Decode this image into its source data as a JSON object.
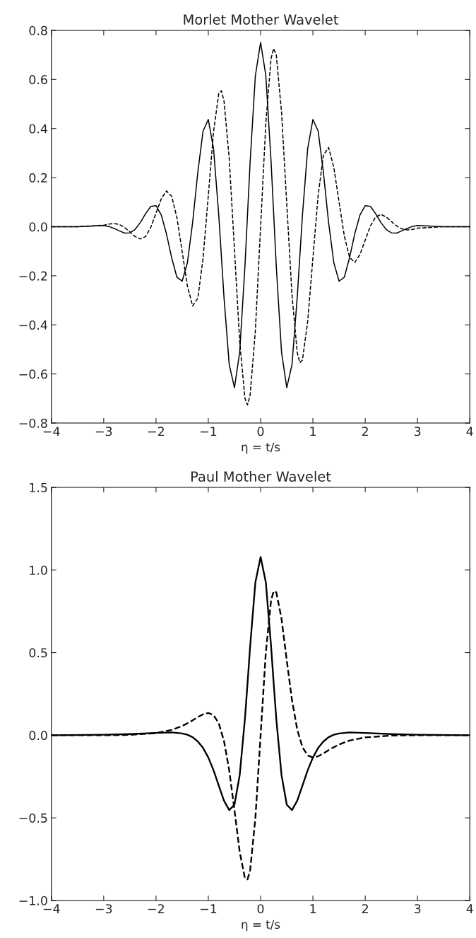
{
  "chart_data": [
    {
      "type": "line",
      "title": "Morlet Mother Wavelet",
      "xlabel": "η = t/s",
      "xlim": [
        -4,
        4
      ],
      "xticks": [
        -4,
        -3,
        -2,
        -1,
        0,
        1,
        2,
        3,
        4
      ],
      "ylim": [
        -0.8,
        0.8
      ],
      "yticks": [
        -0.8,
        -0.6,
        -0.4,
        -0.2,
        {
          "value": 0,
          "label": "0.0"
        },
        0.2,
        0.4,
        0.6,
        0.8
      ],
      "marker": "none",
      "x": [
        -4,
        -3.5,
        -3.0,
        -2.9,
        -2.8,
        -2.7,
        -2.6,
        -2.5,
        -2.4,
        -2.3,
        -2.2,
        -2.1,
        -2.0,
        -1.9,
        -1.8,
        -1.7,
        -1.6,
        -1.5,
        -1.4,
        -1.3,
        -1.2,
        -1.1,
        -1.0,
        -0.9,
        -0.8,
        -0.75,
        -0.7,
        -0.6,
        -0.5,
        -0.4,
        -0.3,
        -0.25,
        -0.2,
        -0.1,
        0,
        0.1,
        0.2,
        0.25,
        0.3,
        0.4,
        0.5,
        0.6,
        0.7,
        0.75,
        0.8,
        0.9,
        1.0,
        1.1,
        1.2,
        1.3,
        1.4,
        1.5,
        1.6,
        1.7,
        1.8,
        1.9,
        2.0,
        2.1,
        2.2,
        2.3,
        2.4,
        2.5,
        2.6,
        2.7,
        2.8,
        2.9,
        3.0,
        3.5,
        4
      ],
      "series": [
        {
          "color": "#000000",
          "line_style": "solid",
          "values": [
            0,
            0,
            0.005,
            0.001,
            -0.007,
            -0.017,
            -0.026,
            -0.025,
            -0.011,
            0.017,
            0.053,
            0.083,
            0.086,
            0.048,
            -0.029,
            -0.127,
            -0.206,
            -0.222,
            -0.147,
            0.017,
            0.223,
            0.39,
            0.437,
            0.318,
            0.047,
            -0.12,
            -0.288,
            -0.562,
            -0.656,
            -0.511,
            -0.163,
            0.051,
            0.266,
            0.616,
            0.751,
            0.616,
            0.266,
            0.051,
            -0.163,
            -0.511,
            -0.656,
            -0.562,
            -0.288,
            -0.12,
            0.047,
            0.318,
            0.437,
            0.39,
            0.223,
            0.017,
            -0.147,
            -0.222,
            -0.206,
            -0.127,
            -0.029,
            0.048,
            0.086,
            0.083,
            0.053,
            0.017,
            -0.011,
            -0.025,
            -0.026,
            -0.017,
            -0.007,
            0.001,
            0.005,
            0,
            0
          ]
        },
        {
          "color": "#000000",
          "line_style": "dashed",
          "values": [
            0,
            0,
            0.006,
            0.011,
            0.013,
            0.009,
            -0.003,
            -0.021,
            -0.04,
            -0.05,
            -0.04,
            -0.003,
            0.055,
            0.113,
            0.146,
            0.124,
            0.037,
            -0.101,
            -0.241,
            -0.323,
            -0.291,
            -0.128,
            0.127,
            0.387,
            0.543,
            0.554,
            0.513,
            0.278,
            -0.093,
            -0.468,
            -0.699,
            -0.726,
            -0.686,
            -0.422,
            0,
            0.422,
            0.686,
            0.726,
            0.699,
            0.468,
            0.093,
            -0.278,
            -0.513,
            -0.554,
            -0.543,
            -0.387,
            -0.127,
            0.128,
            0.291,
            0.323,
            0.241,
            0.101,
            -0.037,
            -0.124,
            -0.146,
            -0.113,
            -0.055,
            0.003,
            0.04,
            0.05,
            0.04,
            0.021,
            0.003,
            -0.009,
            -0.013,
            -0.011,
            -0.006,
            0,
            0
          ]
        }
      ]
    },
    {
      "type": "line",
      "title": "Paul Mother Wavelet",
      "xlabel": "η = t/s",
      "xlim": [
        -4,
        4
      ],
      "xticks": [
        -4,
        -3,
        -2,
        -1,
        0,
        1,
        2,
        3,
        4
      ],
      "ylim": [
        -1.0,
        1.5
      ],
      "yticks": [
        {
          "value": -1,
          "label": "−1.0"
        },
        -0.5,
        {
          "value": 0,
          "label": "0.0"
        },
        0.5,
        {
          "value": 1,
          "label": "1.0"
        },
        1.5
      ],
      "marker": "none",
      "x": [
        -4,
        -3.0,
        -2.5,
        -2.0,
        -1.7,
        -1.5,
        -1.4,
        -1.3,
        -1.2,
        -1.1,
        -1.0,
        -0.9,
        -0.8,
        -0.7,
        -0.6,
        -0.5,
        -0.4,
        -0.3,
        -0.25,
        -0.2,
        -0.1,
        0,
        0.1,
        0.2,
        0.25,
        0.3,
        0.4,
        0.5,
        0.6,
        0.7,
        0.8,
        0.9,
        1.0,
        1.1,
        1.2,
        1.3,
        1.4,
        1.5,
        1.7,
        2.0,
        2.5,
        3.0,
        4
      ],
      "series": [
        {
          "color": "#000000",
          "line_style": "solid",
          "values": [
            0,
            0.003,
            0.007,
            0.014,
            0.017,
            0.011,
            0.003,
            -0.012,
            -0.038,
            -0.077,
            -0.135,
            -0.212,
            -0.305,
            -0.396,
            -0.453,
            -0.42,
            -0.242,
            0.098,
            0.314,
            0.539,
            0.925,
            1.079,
            0.925,
            0.539,
            0.314,
            0.098,
            -0.242,
            -0.42,
            -0.453,
            -0.396,
            -0.305,
            -0.212,
            -0.135,
            -0.077,
            -0.038,
            -0.012,
            0.003,
            0.011,
            0.017,
            0.014,
            0.007,
            0.003,
            0
          ]
        },
        {
          "color": "#000000",
          "line_style": "dashed",
          "values": [
            0,
            0,
            0.002,
            0.013,
            0.032,
            0.056,
            0.072,
            0.09,
            0.11,
            0.127,
            0.135,
            0.122,
            0.072,
            -0.035,
            -0.213,
            -0.453,
            -0.705,
            -0.865,
            -0.872,
            -0.816,
            -0.503,
            0,
            0.503,
            0.816,
            0.872,
            0.865,
            0.705,
            0.453,
            0.213,
            0.035,
            -0.072,
            -0.122,
            -0.135,
            -0.127,
            -0.11,
            -0.09,
            -0.072,
            -0.056,
            -0.032,
            -0.013,
            -0.002,
            0,
            0
          ]
        }
      ]
    }
  ]
}
